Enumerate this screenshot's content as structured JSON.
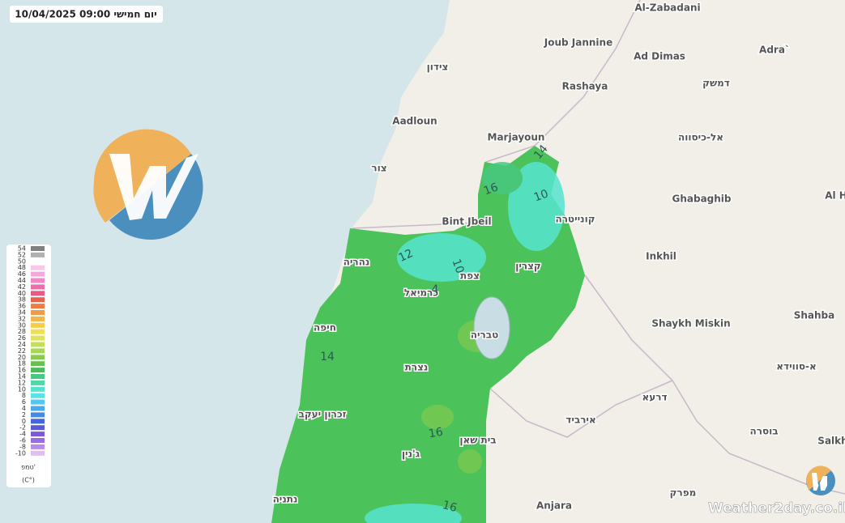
{
  "header": {
    "timestamp": "10/04/2025 09:00 יום חמישי"
  },
  "places": [
    "Al-Zabadani",
    "Joub Jannine",
    "Ad Dimas",
    "Adra`",
    "צידון",
    "Rashaya",
    "דמשק",
    "Aadloun",
    "Marjayoun",
    "אל-כיסווה",
    "צור",
    "Ghabaghib",
    "Al H",
    "Bint Jbeil",
    "קונייטרה",
    "נהריה",
    "צפת",
    "קצרין",
    "Inkhil",
    "כרמיאל",
    "Shahba",
    "Shaykh Miskin",
    "חיפה",
    "טבריה",
    "א-סווידא",
    "נצרת",
    "דרעא",
    "אירביד",
    "זכרון יעקב",
    "בית שאן",
    "בוסרה",
    "Salkh",
    "ג'נין",
    "Anjara",
    "מפרק",
    "נתניה"
  ],
  "contour_labels": [
    "14",
    "16",
    "10",
    "12",
    "10",
    "4",
    "14",
    "16",
    "16"
  ],
  "legend": {
    "title": "טמפ'",
    "unit": "(C°)",
    "items": [
      {
        "value": 54,
        "color": "#808080"
      },
      {
        "value": 52,
        "color": "#b0b0b0"
      },
      {
        "value": 50,
        "color": "#ffffff"
      },
      {
        "value": 48,
        "color": "#f7c6e8"
      },
      {
        "value": 46,
        "color": "#f3a8dc"
      },
      {
        "value": 44,
        "color": "#ee88c8"
      },
      {
        "value": 42,
        "color": "#ea6fa8"
      },
      {
        "value": 40,
        "color": "#e65a84"
      },
      {
        "value": 38,
        "color": "#e8604e"
      },
      {
        "value": 36,
        "color": "#ee7d44"
      },
      {
        "value": 34,
        "color": "#f29a45"
      },
      {
        "value": 32,
        "color": "#f6b445"
      },
      {
        "value": 30,
        "color": "#f8cc4a"
      },
      {
        "value": 28,
        "color": "#f2de52"
      },
      {
        "value": 26,
        "color": "#dde35a"
      },
      {
        "value": 24,
        "color": "#c4de5a"
      },
      {
        "value": 22,
        "color": "#a8d655"
      },
      {
        "value": 20,
        "color": "#88cc4e"
      },
      {
        "value": 18,
        "color": "#66c24c"
      },
      {
        "value": 16,
        "color": "#4cbc5a"
      },
      {
        "value": 14,
        "color": "#48c880"
      },
      {
        "value": 12,
        "color": "#4cd8a8"
      },
      {
        "value": 10,
        "color": "#52e4cc"
      },
      {
        "value": 8,
        "color": "#56e4e8"
      },
      {
        "value": 6,
        "color": "#52c8ee"
      },
      {
        "value": 4,
        "color": "#4aa8ec"
      },
      {
        "value": 2,
        "color": "#4688e6"
      },
      {
        "value": 0,
        "color": "#4466dc"
      },
      {
        "value": -2,
        "color": "#5a58d8"
      },
      {
        "value": -4,
        "color": "#7a5ad8"
      },
      {
        "value": -6,
        "color": "#9a6ae0"
      },
      {
        "value": -8,
        "color": "#bc8ae8"
      },
      {
        "value": -10,
        "color": "#e0bff0"
      }
    ]
  },
  "watermark": "Weather2day.co.il"
}
